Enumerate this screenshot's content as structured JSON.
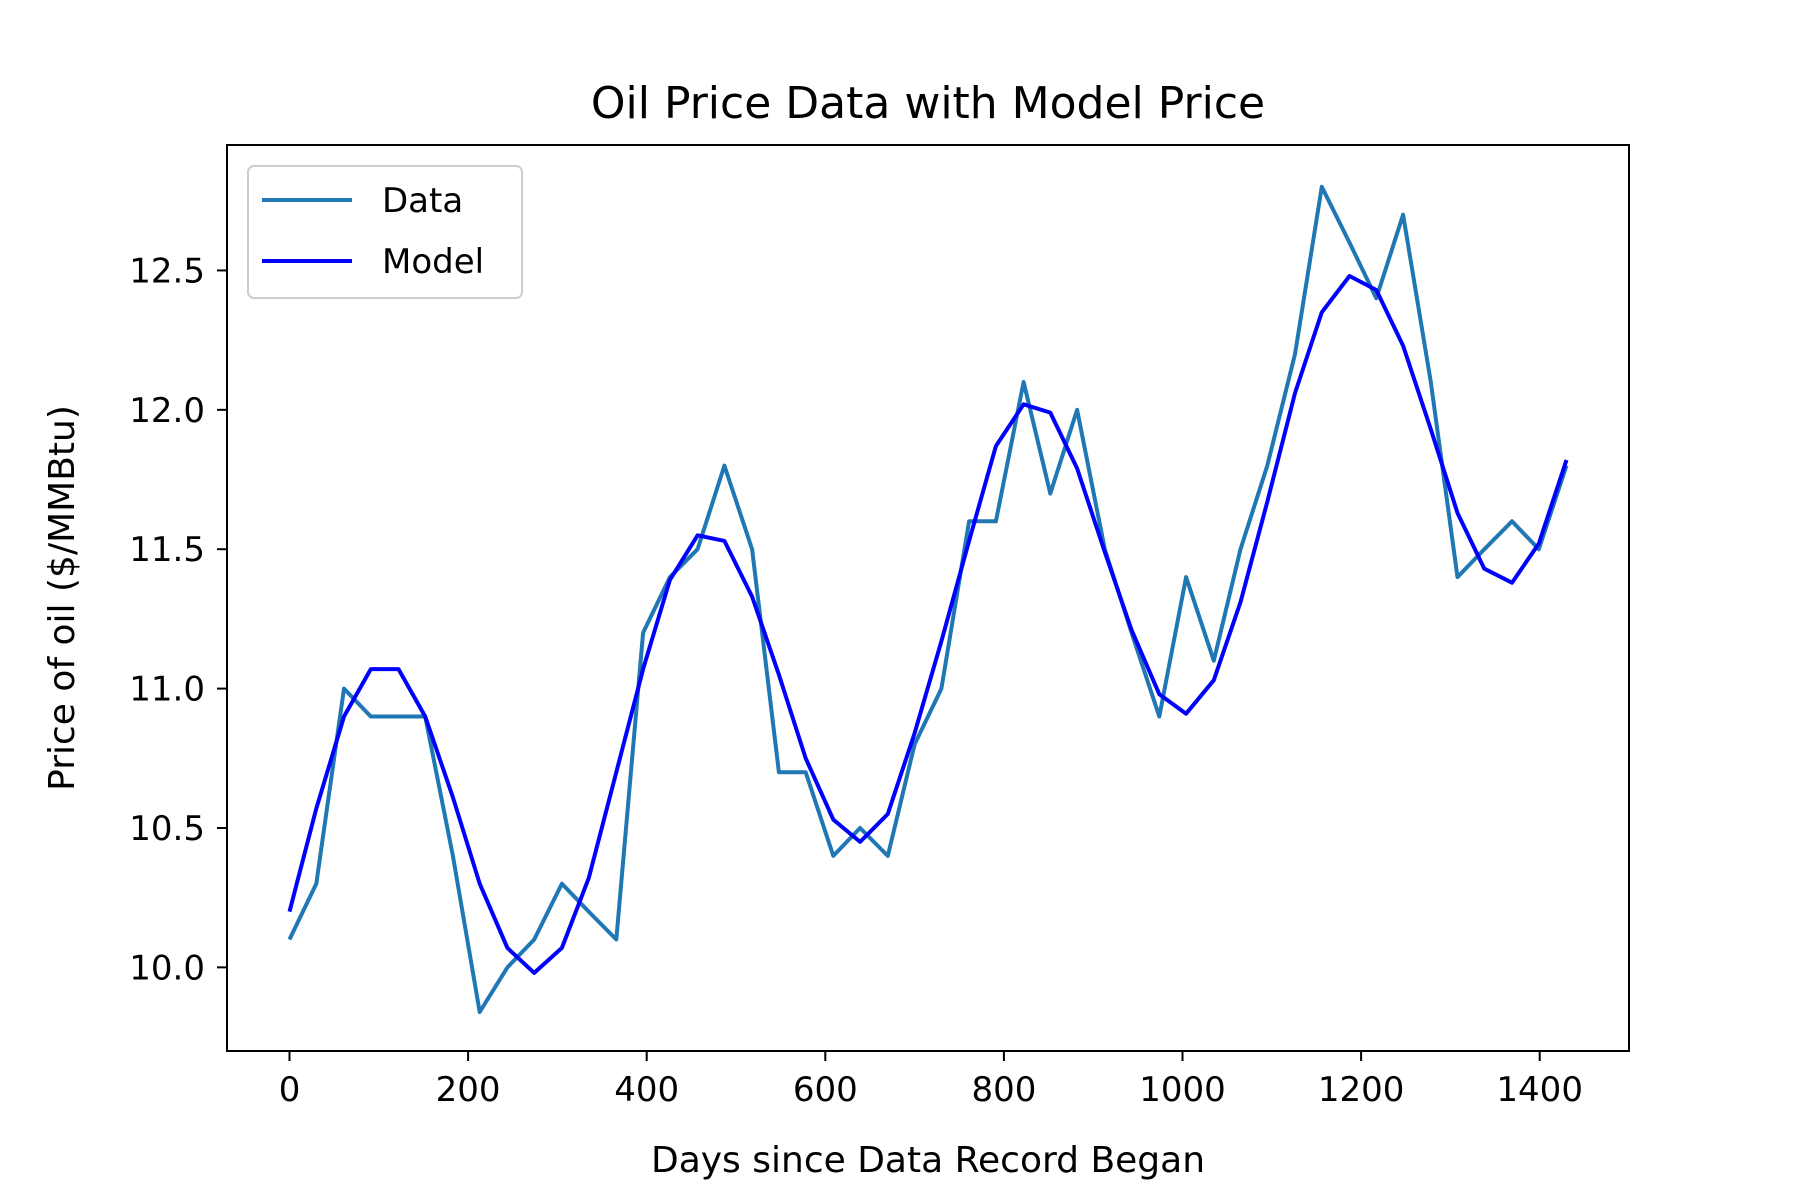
{
  "chart_data": {
    "type": "line",
    "title": "Oil Price Data with Model Price",
    "xlabel": "Days since Data Record Began",
    "ylabel": "Price of oil ($/MMBtu)",
    "xlim": [
      -70,
      1500
    ],
    "ylim": [
      9.7,
      12.95
    ],
    "xticks": [
      0,
      200,
      400,
      600,
      800,
      1000,
      1200,
      1400
    ],
    "yticks": [
      10.0,
      10.5,
      11.0,
      11.5,
      12.0,
      12.5
    ],
    "ytick_labels": [
      "10.0",
      "10.5",
      "11.0",
      "11.5",
      "12.0",
      "12.5"
    ],
    "xtick_labels": [
      "0",
      "200",
      "400",
      "600",
      "800",
      "1000",
      "1200",
      "1400"
    ],
    "grid": false,
    "legend_position": "upper-left",
    "series": [
      {
        "name": "Data",
        "color": "#1f77b4",
        "x": [
          0,
          30,
          61,
          91,
          122,
          152,
          183,
          213,
          244,
          274,
          305,
          335,
          366,
          396,
          426,
          457,
          487,
          518,
          548,
          578,
          609,
          639,
          670,
          700,
          730,
          761,
          791,
          822,
          852,
          882,
          913,
          943,
          974,
          1004,
          1035,
          1065,
          1095,
          1126,
          1156,
          1187,
          1217,
          1247,
          1278,
          1308,
          1338,
          1369,
          1399,
          1430
        ],
        "y": [
          10.1,
          10.3,
          11.0,
          10.9,
          10.9,
          10.9,
          10.4,
          9.84,
          10.0,
          10.1,
          10.3,
          10.2,
          10.1,
          11.2,
          11.4,
          11.5,
          11.8,
          11.5,
          10.7,
          10.7,
          10.4,
          10.5,
          10.4,
          10.8,
          11.0,
          11.6,
          11.6,
          12.1,
          11.7,
          12.0,
          11.5,
          11.2,
          10.9,
          11.4,
          11.1,
          11.5,
          11.8,
          12.2,
          12.8,
          12.6,
          12.4,
          12.7,
          12.1,
          11.4,
          11.5,
          11.6,
          11.5,
          11.8
        ]
      },
      {
        "name": "Model",
        "color": "#0000ff",
        "x": [
          0,
          30,
          61,
          91,
          122,
          152,
          183,
          213,
          244,
          274,
          305,
          335,
          366,
          396,
          426,
          457,
          487,
          518,
          548,
          578,
          609,
          639,
          670,
          700,
          730,
          761,
          791,
          822,
          852,
          882,
          913,
          943,
          974,
          1004,
          1035,
          1065,
          1095,
          1126,
          1156,
          1187,
          1217,
          1247,
          1278,
          1308,
          1338,
          1369,
          1399,
          1430
        ],
        "y": [
          10.2,
          10.57,
          10.9,
          11.07,
          11.07,
          10.9,
          10.61,
          10.3,
          10.07,
          9.98,
          10.07,
          10.32,
          10.7,
          11.07,
          11.39,
          11.55,
          11.53,
          11.33,
          11.05,
          10.75,
          10.53,
          10.45,
          10.55,
          10.84,
          11.17,
          11.53,
          11.87,
          12.02,
          11.99,
          11.79,
          11.49,
          11.21,
          10.98,
          10.91,
          11.03,
          11.31,
          11.67,
          12.06,
          12.35,
          12.48,
          12.43,
          12.23,
          11.93,
          11.63,
          11.43,
          11.38,
          11.52,
          11.82
        ]
      }
    ]
  }
}
